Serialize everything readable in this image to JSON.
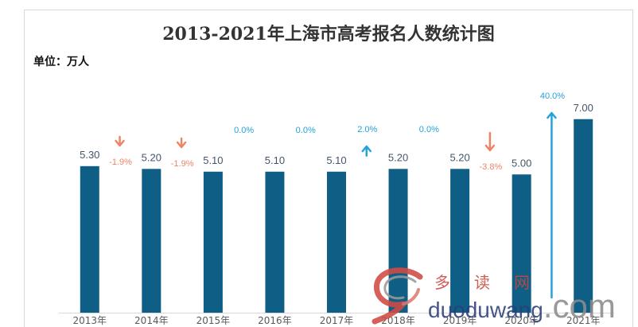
{
  "chart_data": {
    "type": "bar",
    "title": "2013-2021年上海市高考报名人数统计图",
    "unit_label": "单位：万人",
    "categories": [
      "2013年",
      "2014年",
      "2015年",
      "2016年",
      "2017年",
      "2018年",
      "2019年",
      "2020年",
      "2021年"
    ],
    "values": [
      5.3,
      5.2,
      5.1,
      5.1,
      5.1,
      5.2,
      5.2,
      5.0,
      7.0
    ],
    "value_labels": [
      "5.30",
      "5.20",
      "5.10",
      "5.10",
      "5.10",
      "5.20",
      "5.20",
      "5.00",
      "7.00"
    ],
    "growth_rate": {
      "values": [
        -1.9,
        -1.9,
        0.0,
        0.0,
        2.0,
        0.0,
        -3.8,
        40.0
      ],
      "labels": [
        "-1.9%",
        "-1.9%",
        "0.0%",
        "0.0%",
        "2.0%",
        "0.0%",
        "-3.8%",
        "40.0%"
      ]
    },
    "ylim": [
      0,
      8
    ],
    "legend": "none",
    "grid": false
  },
  "colors": {
    "bar": "#0E5E86",
    "value_label": "#44546A",
    "growth_negative": "#EE8467",
    "growth_positive": "#23A2DC",
    "axis": "#D9D9D9"
  },
  "watermark": {
    "name": "多读网",
    "site_name": "duoduwang",
    "site_suffix": ".com"
  }
}
